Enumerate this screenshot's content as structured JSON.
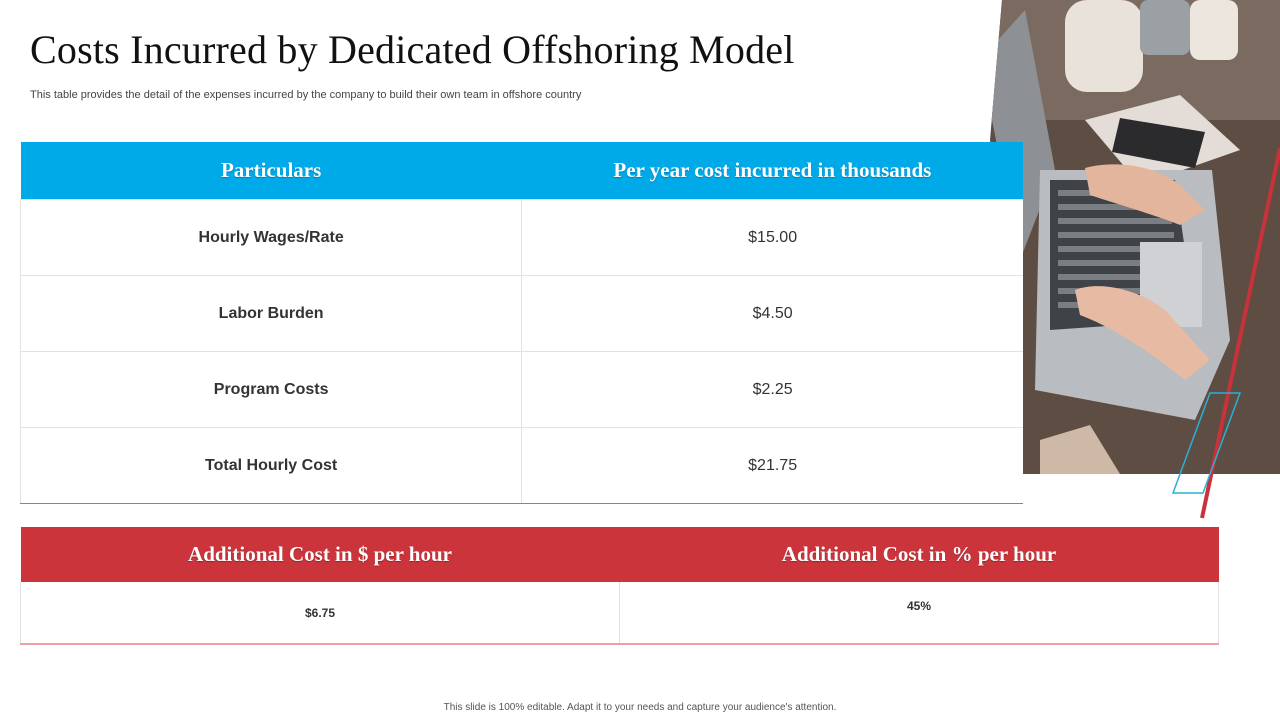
{
  "header": {
    "title": "Costs Incurred by Dedicated Offshoring Model",
    "subtitle": "This table provides the detail of the expenses incurred by the company to build their own team in offshore country"
  },
  "cost_table": {
    "columns": [
      "Particulars",
      "Per year  cost incurred in thousands"
    ],
    "rows": [
      {
        "particular": "Hourly Wages/Rate",
        "cost": "$15.00"
      },
      {
        "particular": "Labor Burden",
        "cost": "$4.50"
      },
      {
        "particular": "Program Costs",
        "cost": "$2.25"
      },
      {
        "particular": "Total Hourly Cost",
        "cost": "$21.75"
      }
    ]
  },
  "additional_table": {
    "columns": [
      "Additional Cost in $ per hour",
      "Additional Cost in % per hour"
    ],
    "values": [
      "$6.75",
      "45%"
    ]
  },
  "footer": {
    "note": "This slide is 100% editable.  Adapt it to your needs and capture your audience's attention."
  },
  "colors": {
    "header_blue": "#00a9e8",
    "header_red": "#cc343c",
    "accent_red": "#c8323a",
    "accent_cyan": "#2ab0d8"
  },
  "photo": {
    "icon": "laptop-typing-photo"
  }
}
